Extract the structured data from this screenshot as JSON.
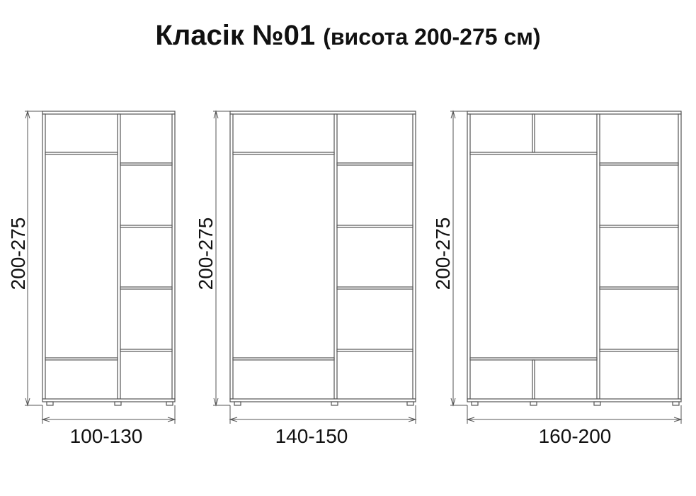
{
  "title": {
    "main": "Класік №01",
    "sub": "(висота 200-275 см)"
  },
  "wardrobes": [
    {
      "height_label": "200-275",
      "width_label": "100-130"
    },
    {
      "height_label": "200-275",
      "width_label": "140-150"
    },
    {
      "height_label": "200-275",
      "width_label": "160-200"
    }
  ],
  "colors": {
    "line": "#555555",
    "text": "#111111"
  }
}
